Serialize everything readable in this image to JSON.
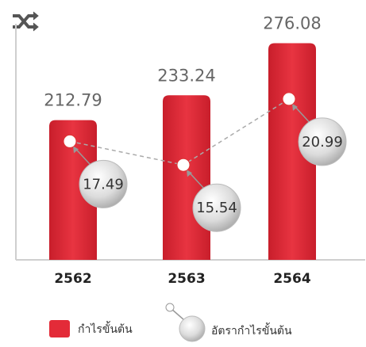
{
  "chart_data": {
    "type": "bar",
    "categories": [
      "2562",
      "2563",
      "2564"
    ],
    "series": [
      {
        "name": "กำไรขั้นต้น",
        "type": "bar",
        "color": "#e32b38",
        "values": [
          212.79,
          233.24,
          276.08
        ]
      },
      {
        "name": "อัตรากำไรขั้นต้น",
        "type": "line",
        "axis": "y2",
        "color": "#c8c8c8",
        "values": [
          17.49,
          15.54,
          20.99
        ]
      }
    ],
    "ylim": [
      98,
      292
    ],
    "y2lim": [
      7.7,
      27.2
    ],
    "legend": "bottom"
  }
}
